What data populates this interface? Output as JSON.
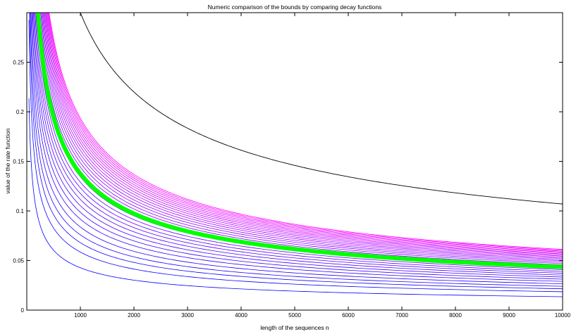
{
  "chart_data": {
    "type": "line",
    "title": "Numeric comparison of the bounds by comparing decay functions",
    "xlabel": "length of the sequences n",
    "ylabel": "value of the rate function",
    "xlim": [
      0,
      10000
    ],
    "ylim": [
      0,
      0.3
    ],
    "xticks": [
      1000,
      2000,
      3000,
      4000,
      5000,
      6000,
      7000,
      8000,
      9000,
      10000
    ],
    "yticks": [
      0,
      0.05,
      0.1,
      0.15,
      0.2,
      0.25
    ],
    "xtick_labels": [
      "1000",
      "2000",
      "3000",
      "4000",
      "5000",
      "6000",
      "7000",
      "8000",
      "9000",
      "10000"
    ],
    "ytick_labels": [
      "0",
      "0.05",
      "0.1",
      "0.15",
      "0.2",
      "0.25"
    ],
    "grid": false,
    "colors": {
      "low_family": "#0000ff",
      "high_family": "#ff00ff",
      "reference": "#000000",
      "highlight": "#00ff00"
    },
    "series_groups": [
      {
        "role": "family",
        "x_start": 40,
        "x_end": 10000,
        "values_at_x_end": [
          0.0135,
          0.0185,
          0.0215,
          0.024,
          0.0265,
          0.029,
          0.0312,
          0.0333,
          0.0353,
          0.0372,
          0.039,
          0.0408,
          0.0425,
          0.0441,
          0.0456,
          0.047,
          0.0484,
          0.0497,
          0.051,
          0.0522,
          0.0534,
          0.0545,
          0.0556,
          0.0566,
          0.0576,
          0.0586,
          0.0595,
          0.0604,
          0.0612
        ]
      },
      {
        "role": "reference",
        "x_start": 1000,
        "x_end": 10000,
        "values_at_x_end": [
          0.107
        ],
        "value_at_x_start": 0.3
      },
      {
        "role": "highlight",
        "x_start": 90,
        "x_end": 10000,
        "values_at_x_end": [
          0.0435
        ]
      }
    ]
  }
}
